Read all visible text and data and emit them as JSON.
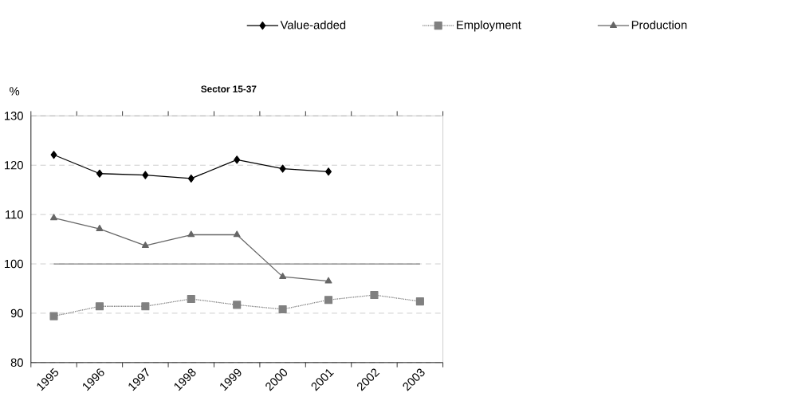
{
  "chart_data": {
    "type": "line",
    "title": "Sector  15-37",
    "ylabel": "%",
    "categories": [
      "1995",
      "1996",
      "1997",
      "1998",
      "1999",
      "2000",
      "2001",
      "2002",
      "2003"
    ],
    "series": [
      {
        "name": "Value-added",
        "color": "#000000",
        "marker": "diamond",
        "line_style": "solid",
        "values": [
          122.1,
          118.3,
          118.0,
          117.3,
          121.1,
          119.3,
          118.7,
          null,
          null
        ]
      },
      {
        "name": "Employment",
        "color": "#808080",
        "marker": "square",
        "line_style": "dotted",
        "values": [
          89.4,
          91.4,
          91.4,
          92.9,
          91.7,
          90.8,
          92.7,
          93.7,
          92.4
        ]
      },
      {
        "name": "Production",
        "color": "#666666",
        "marker": "triangle",
        "line_style": "solid",
        "values": [
          109.3,
          107.1,
          103.7,
          105.9,
          105.9,
          97.4,
          96.5,
          null,
          null
        ]
      }
    ],
    "ylim": [
      80,
      130
    ],
    "yticks": [
      80,
      90,
      100,
      110,
      120,
      130
    ],
    "grid": "y",
    "legend": "top",
    "ref_lines": [
      {
        "axis": "y",
        "value": 100,
        "color": "#808080",
        "line_style": "solid"
      }
    ]
  }
}
